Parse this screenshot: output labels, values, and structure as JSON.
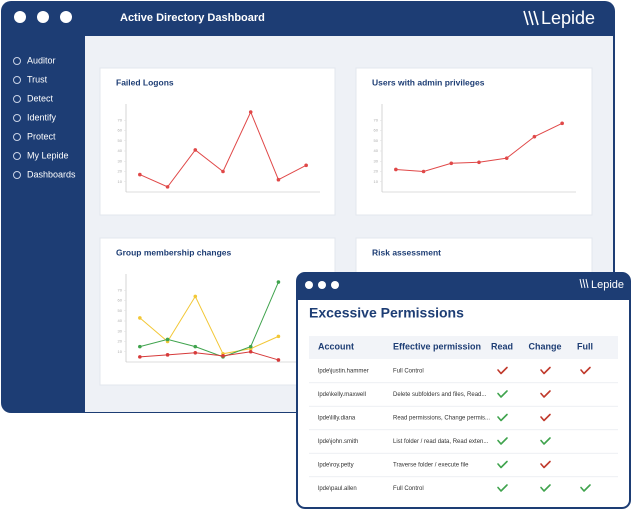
{
  "window": {
    "title": "Active Directory Dashboard",
    "brand": "Lepide"
  },
  "sidebar": [
    "Auditor",
    "Trust",
    "Detect",
    "Identify",
    "Protect",
    "My Lepide",
    "Dashboards"
  ],
  "charts": [
    {
      "type": "line",
      "title": "Failed Logons",
      "categories": [
        null,
        null,
        null,
        null,
        null,
        null,
        null
      ],
      "series": [
        {
          "color": "#e04848",
          "values": [
            17,
            5,
            41,
            20,
            78,
            12,
            26
          ]
        }
      ],
      "ylim": [
        0,
        80
      ],
      "yticks": [
        10,
        20,
        30,
        40,
        50,
        60,
        70
      ]
    },
    {
      "type": "line",
      "title": "Users with admin privileges",
      "categories": [
        null,
        null,
        null,
        null,
        null,
        null,
        null
      ],
      "series": [
        {
          "color": "#e04848",
          "values": [
            22,
            20,
            28,
            29,
            33,
            54,
            67
          ]
        }
      ],
      "ylim": [
        0,
        80
      ],
      "yticks": [
        10,
        20,
        30,
        40,
        50,
        60,
        70
      ]
    },
    {
      "type": "line",
      "title": "Group membership changes",
      "categories": [
        null,
        null,
        null,
        null,
        null,
        null,
        null
      ],
      "series": [
        {
          "color": "#f2c736",
          "values": [
            43,
            20,
            64,
            8,
            13,
            25,
            null
          ]
        },
        {
          "color": "#3fa34d",
          "values": [
            15,
            22,
            15,
            5,
            15,
            78,
            null
          ]
        },
        {
          "color": "#d63a3a",
          "values": [
            5,
            7,
            9,
            6,
            10,
            2,
            null
          ]
        }
      ],
      "ylim": [
        0,
        80
      ],
      "yticks": [
        10,
        20,
        30,
        40,
        50,
        60,
        70
      ]
    },
    {
      "type": "line",
      "title": "Risk assessment",
      "categories": [],
      "series": []
    }
  ],
  "popup": {
    "brand": "Lepide",
    "title": "Excessive Permissions",
    "columns": [
      "Account",
      "Effective permission",
      "Read",
      "Change",
      "Full"
    ],
    "rows": [
      [
        "lpde\\justin.hammer",
        "Full Control",
        "#c0392b",
        "#c0392b",
        "#c0392b"
      ],
      [
        "lpde\\kelly.maxwell",
        "Delete subfolders and files, Read...",
        "#3fa34d",
        "#c0392b",
        null
      ],
      [
        "lpde\\lilly.diana",
        "Read permissions, Change permis...",
        "#3fa34d",
        "#c0392b",
        null
      ],
      [
        "lpde\\john.smith",
        "List folder / read data, Read exten...",
        "#3fa34d",
        "#3fa34d",
        null
      ],
      [
        "lpde\\roy.petty",
        "Traverse folder / execute file",
        "#3fa34d",
        "#c0392b",
        null
      ],
      [
        "lpde\\paul.allen",
        "Full Control",
        "#3fa34d",
        "#3fa34d",
        "#3fa34d"
      ]
    ]
  }
}
